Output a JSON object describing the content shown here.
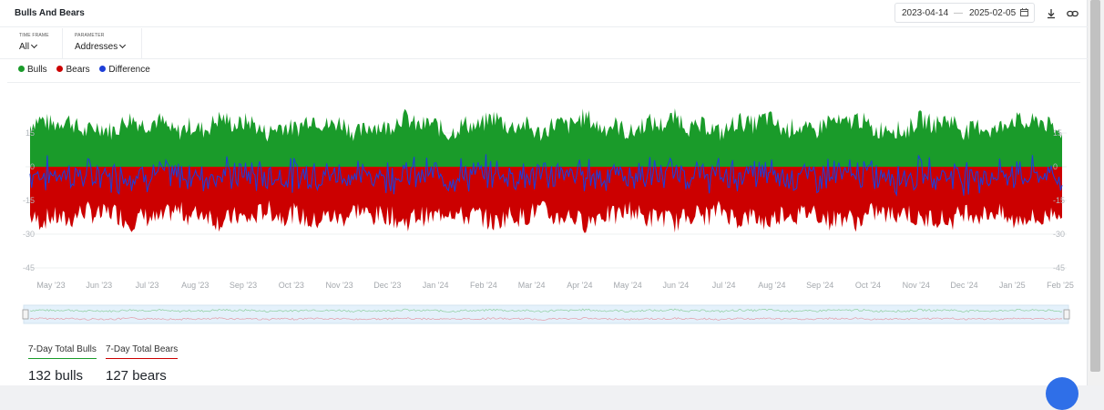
{
  "header": {
    "title": "Bulls And Bears",
    "date_from": "2023-04-14",
    "date_sep": "—",
    "date_to": "2025-02-05",
    "calendar_icon": "calendar-icon",
    "download_icon": "download-icon",
    "link_icon": "link-icon"
  },
  "filters": [
    {
      "label": "TIME FRAME",
      "value": "All"
    },
    {
      "label": "PARAMETER",
      "value": "Addresses"
    }
  ],
  "legend": [
    {
      "name": "Bulls",
      "color": "#1a9b2a"
    },
    {
      "name": "Bears",
      "color": "#cc0000"
    },
    {
      "name": "Difference",
      "color": "#1e3fd8"
    }
  ],
  "totals": {
    "bulls_label": "7-Day Total Bulls",
    "bulls_value": "132 bulls",
    "bulls_color": "#1a9b2a",
    "bears_label": "7-Day Total Bears",
    "bears_value": "127 bears",
    "bears_color": "#cc0000"
  },
  "chart_data": {
    "type": "area",
    "x_start": "2023-04-14",
    "x_end": "2025-02-05",
    "x_ticks": [
      "May '23",
      "Jun '23",
      "Jul '23",
      "Aug '23",
      "Sep '23",
      "Oct '23",
      "Nov '23",
      "Dec '23",
      "Jan '24",
      "Feb '24",
      "Mar '24",
      "Apr '24",
      "May '24",
      "Jun '24",
      "Jul '24",
      "Aug '24",
      "Sep '24",
      "Oct '24",
      "Nov '24",
      "Dec '24",
      "Jan '25",
      "Feb '25"
    ],
    "y_ticks": [
      "15",
      "0",
      "-15",
      "-30",
      "-45"
    ],
    "y_tick_values": [
      15,
      0,
      -15,
      -30,
      -45
    ],
    "ylim": [
      -45,
      15
    ],
    "grid": true,
    "series": [
      {
        "name": "Bulls",
        "color": "#1a9b2a",
        "typical_range": [
          10,
          26
        ]
      },
      {
        "name": "Bears",
        "color": "#cc0000",
        "typical_range": [
          -30,
          -14
        ]
      },
      {
        "name": "Difference",
        "color": "#1e3fd8",
        "typical_range": [
          -8,
          5
        ]
      }
    ]
  }
}
